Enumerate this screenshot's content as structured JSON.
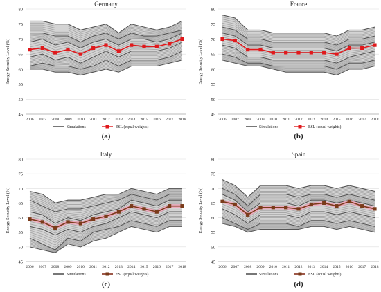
{
  "figure": {
    "panel_letters": [
      "(a)",
      "(b)",
      "(c)",
      "(d)"
    ]
  },
  "colors": {
    "simulation_line": "#555555",
    "simulation_band": "#9a9a9a",
    "esl_germany_france": "#e0191c",
    "esl_italy_spain": "#7a3b1a",
    "esl_band_italy_spain": "#f2a0b8",
    "grid": "#dddddd"
  },
  "chart_data": [
    {
      "type": "line",
      "title": "Germany",
      "ylabel": "Energy Security Level (%)",
      "ylim": [
        45,
        80
      ],
      "yticks": [
        45,
        50,
        55,
        60,
        65,
        70,
        75,
        80
      ],
      "x": [
        2006,
        2007,
        2008,
        2009,
        2010,
        2011,
        2012,
        2013,
        2014,
        2015,
        2016,
        2017,
        2018
      ],
      "legend": [
        "Simulations",
        "ESL (equal weights)"
      ],
      "series": [
        {
          "name": "Simulations",
          "values": [
            76,
            76,
            75,
            75,
            73,
            74,
            75,
            72,
            75,
            74,
            73,
            74,
            76
          ]
        },
        {
          "name": "Simulations",
          "values": [
            72,
            72,
            71,
            71,
            69,
            71,
            72,
            70,
            72,
            71,
            71,
            72,
            73
          ]
        },
        {
          "name": "Simulations",
          "values": [
            69,
            70,
            68,
            69,
            67,
            69,
            70,
            68,
            70,
            70,
            69,
            70,
            72
          ]
        },
        {
          "name": "Simulations",
          "values": [
            64,
            65,
            63,
            64,
            62,
            64,
            66,
            64,
            66,
            66,
            66,
            67,
            69
          ]
        },
        {
          "name": "Simulations",
          "values": [
            61,
            62,
            61,
            61,
            60,
            61,
            63,
            61,
            63,
            63,
            63,
            64,
            66
          ]
        },
        {
          "name": "Simulations",
          "values": [
            60,
            60,
            59,
            59,
            58,
            59,
            60,
            59,
            61,
            61,
            61,
            62,
            63
          ]
        },
        {
          "name": "ESL (equal weights)",
          "values": [
            66.5,
            67,
            65.5,
            66.5,
            65,
            67,
            68,
            66,
            68,
            67.5,
            67.5,
            68.5,
            70
          ]
        }
      ]
    },
    {
      "type": "line",
      "title": "France",
      "ylabel": "Energy Security Level (%)",
      "ylim": [
        45,
        80
      ],
      "yticks": [
        45,
        50,
        55,
        60,
        65,
        70,
        75,
        80
      ],
      "x": [
        2006,
        2007,
        2008,
        2009,
        2010,
        2011,
        2012,
        2013,
        2014,
        2015,
        2016,
        2017,
        2018
      ],
      "legend": [
        "Simulations",
        "ESL (equal weights)"
      ],
      "series": [
        {
          "name": "Simulations",
          "values": [
            78,
            77,
            73,
            73,
            72,
            72,
            72,
            72,
            72,
            71,
            73,
            73,
            74
          ]
        },
        {
          "name": "Simulations",
          "values": [
            74,
            73,
            70,
            70,
            69,
            69,
            69,
            69,
            69,
            68,
            70,
            70,
            71
          ]
        },
        {
          "name": "Simulations",
          "values": [
            72,
            71,
            68,
            68,
            67,
            67,
            67,
            67,
            67,
            66,
            68,
            68,
            69
          ]
        },
        {
          "name": "Simulations",
          "values": [
            68,
            67,
            64,
            64,
            63,
            63,
            63,
            63,
            63,
            62,
            64,
            65,
            66
          ]
        },
        {
          "name": "Simulations",
          "values": [
            65,
            64,
            62,
            62,
            61,
            61,
            61,
            61,
            61,
            60,
            62,
            62,
            63
          ]
        },
        {
          "name": "Simulations",
          "values": [
            63,
            62,
            61,
            61,
            60,
            59,
            59,
            59,
            59,
            58,
            60,
            60,
            61
          ]
        },
        {
          "name": "ESL (equal weights)",
          "values": [
            70,
            69.5,
            66.5,
            66.5,
            65.5,
            65.5,
            65.5,
            65.5,
            65.5,
            65,
            67,
            67,
            68
          ]
        }
      ]
    },
    {
      "type": "line",
      "title": "Italy",
      "ylabel": "Energy Security Level (%)",
      "ylim": [
        45,
        80
      ],
      "yticks": [
        45,
        50,
        55,
        60,
        65,
        70,
        75,
        80
      ],
      "x": [
        2006,
        2007,
        2008,
        2009,
        2010,
        2011,
        2012,
        2013,
        2014,
        2015,
        2016,
        2017,
        2018
      ],
      "legend": [
        "Simulations",
        "ESL (equal weights)"
      ],
      "series": [
        {
          "name": "Simulations",
          "values": [
            69,
            68,
            65,
            66,
            66,
            67,
            68,
            68,
            70,
            69,
            68,
            70,
            70
          ]
        },
        {
          "name": "Simulations",
          "values": [
            66,
            64,
            62,
            63,
            63,
            64,
            65,
            66,
            68,
            67,
            66,
            68,
            68
          ]
        },
        {
          "name": "Simulations",
          "values": [
            62,
            61,
            58,
            60,
            59,
            61,
            62,
            63,
            66,
            65,
            64,
            66,
            66
          ]
        },
        {
          "name": "Simulations",
          "values": [
            57,
            56,
            54,
            56,
            55,
            57,
            58,
            60,
            62,
            61,
            60,
            62,
            62
          ]
        },
        {
          "name": "Simulations",
          "values": [
            53,
            51,
            49,
            53,
            52,
            55,
            56,
            57,
            59,
            58,
            57,
            59,
            59
          ]
        },
        {
          "name": "Simulations",
          "values": [
            50,
            49,
            48,
            51,
            50,
            52,
            53,
            55,
            57,
            56,
            55,
            57,
            57
          ]
        },
        {
          "name": "ESL (equal weights)",
          "values": [
            59.5,
            58.5,
            56.5,
            58.5,
            58,
            59.5,
            60.5,
            62,
            64,
            63,
            62,
            64,
            64
          ]
        }
      ]
    },
    {
      "type": "line",
      "title": "Spain",
      "ylabel": "Energy Security Level (%)",
      "ylim": [
        45,
        80
      ],
      "yticks": [
        45,
        50,
        55,
        60,
        65,
        70,
        75,
        80
      ],
      "x": [
        2006,
        2007,
        2008,
        2009,
        2010,
        2011,
        2012,
        2013,
        2014,
        2015,
        2016,
        2017,
        2018
      ],
      "legend": [
        "Simulations",
        "ESL (equal weights)"
      ],
      "series": [
        {
          "name": "Simulations",
          "values": [
            73,
            71,
            67,
            71,
            71,
            71,
            70,
            71,
            71,
            70,
            71,
            70,
            69
          ]
        },
        {
          "name": "Simulations",
          "values": [
            70,
            68,
            64,
            68,
            68,
            68,
            67,
            68,
            68,
            67,
            68,
            67,
            66
          ]
        },
        {
          "name": "Simulations",
          "values": [
            68,
            66,
            62,
            65,
            65,
            65,
            64,
            66,
            66,
            65,
            66,
            65,
            64
          ]
        },
        {
          "name": "Simulations",
          "values": [
            63,
            61,
            58,
            61,
            61,
            61,
            60,
            62,
            62,
            61,
            62,
            61,
            60
          ]
        },
        {
          "name": "Simulations",
          "values": [
            60,
            58,
            56,
            58,
            58,
            58,
            57,
            59,
            59,
            58,
            59,
            58,
            57
          ]
        },
        {
          "name": "Simulations",
          "values": [
            58,
            57,
            55,
            56,
            56,
            56,
            56,
            57,
            57,
            56,
            57,
            56,
            55
          ]
        },
        {
          "name": "ESL (equal weights)",
          "values": [
            65.5,
            64.5,
            61,
            63.5,
            63.5,
            63.5,
            63,
            64.5,
            65,
            64,
            65.5,
            64,
            63
          ]
        }
      ]
    }
  ]
}
